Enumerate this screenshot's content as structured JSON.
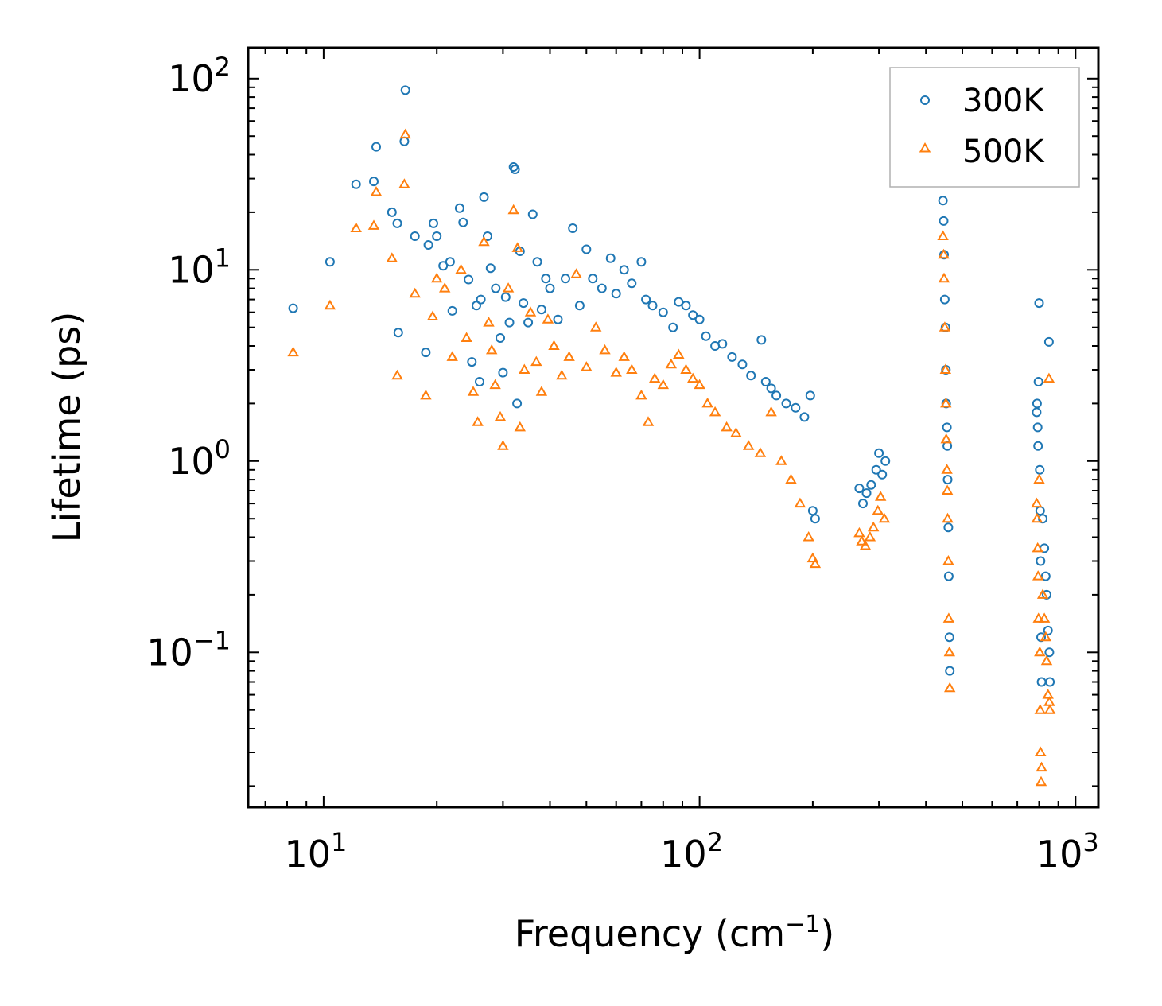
{
  "chart_data": {
    "type": "scatter",
    "title": "",
    "xlabel": "Frequency (cm",
    "xlabel_sup": "−1",
    "xlabel_end": ")",
    "ylabel": "Lifetime (ps)",
    "xscale": "log",
    "yscale": "log",
    "xlim": [
      6.3,
      1150
    ],
    "ylim": [
      0.0155,
      145
    ],
    "x_ticks": [
      {
        "value": 10,
        "base": "10",
        "exp": "1"
      },
      {
        "value": 100,
        "base": "10",
        "exp": "2"
      },
      {
        "value": 1000,
        "base": "10",
        "exp": "3"
      }
    ],
    "y_ticks": [
      {
        "value": 0.1,
        "base": "10",
        "exp": "−1"
      },
      {
        "value": 1,
        "base": "10",
        "exp": "0"
      },
      {
        "value": 10,
        "base": "10",
        "exp": "1"
      },
      {
        "value": 100,
        "base": "10",
        "exp": "2"
      }
    ],
    "legend_position": "top-right",
    "series": [
      {
        "name": "300K",
        "marker": "circle",
        "color": "#1f77b4",
        "points": [
          [
            8.3,
            6.3
          ],
          [
            10.4,
            11
          ],
          [
            12.2,
            28
          ],
          [
            13.6,
            29
          ],
          [
            13.8,
            44
          ],
          [
            15.2,
            20
          ],
          [
            15.7,
            17.5
          ],
          [
            15.8,
            4.7
          ],
          [
            16.5,
            87
          ],
          [
            16.4,
            47
          ],
          [
            17.5,
            15
          ],
          [
            18.7,
            3.7
          ],
          [
            19,
            13.5
          ],
          [
            19.6,
            17.5
          ],
          [
            20,
            15
          ],
          [
            20.8,
            10.5
          ],
          [
            21.7,
            11
          ],
          [
            22,
            6.1
          ],
          [
            23,
            21
          ],
          [
            23.5,
            17.7
          ],
          [
            24.3,
            8.9
          ],
          [
            24.8,
            3.3
          ],
          [
            25.5,
            6.5
          ],
          [
            26,
            2.6
          ],
          [
            26.2,
            7
          ],
          [
            26.7,
            24
          ],
          [
            27.3,
            15
          ],
          [
            27.8,
            10.2
          ],
          [
            28.7,
            8
          ],
          [
            29.5,
            4.4
          ],
          [
            30,
            2.9
          ],
          [
            30.5,
            7.2
          ],
          [
            31.2,
            5.3
          ],
          [
            32,
            34.5
          ],
          [
            32.3,
            33.5
          ],
          [
            32.7,
            2
          ],
          [
            33.3,
            12.5
          ],
          [
            34,
            6.7
          ],
          [
            35,
            5.3
          ],
          [
            36,
            19.5
          ],
          [
            37,
            11
          ],
          [
            38,
            6.2
          ],
          [
            39,
            9
          ],
          [
            40,
            8
          ],
          [
            42,
            5.5
          ],
          [
            44,
            9
          ],
          [
            46,
            16.5
          ],
          [
            48,
            6.5
          ],
          [
            50,
            12.8
          ],
          [
            52,
            9
          ],
          [
            55,
            8
          ],
          [
            58,
            11.5
          ],
          [
            60,
            7.5
          ],
          [
            63,
            10
          ],
          [
            66,
            8.5
          ],
          [
            70,
            11
          ],
          [
            72,
            7
          ],
          [
            75,
            6.5
          ],
          [
            80,
            6
          ],
          [
            85,
            5
          ],
          [
            88,
            6.8
          ],
          [
            92,
            6.5
          ],
          [
            96,
            5.8
          ],
          [
            100,
            5.5
          ],
          [
            104,
            4.5
          ],
          [
            110,
            4
          ],
          [
            115,
            4.1
          ],
          [
            122,
            3.5
          ],
          [
            130,
            3.2
          ],
          [
            137,
            2.8
          ],
          [
            146,
            4.3
          ],
          [
            150,
            2.6
          ],
          [
            155,
            2.4
          ],
          [
            160,
            2.2
          ],
          [
            170,
            2
          ],
          [
            180,
            1.9
          ],
          [
            190,
            1.7
          ],
          [
            197,
            2.2
          ],
          [
            200,
            0.55
          ],
          [
            203,
            0.5
          ],
          [
            266,
            0.72
          ],
          [
            272,
            0.6
          ],
          [
            278,
            0.68
          ],
          [
            286,
            0.75
          ],
          [
            295,
            0.9
          ],
          [
            300,
            1.1
          ],
          [
            306,
            0.85
          ],
          [
            312,
            1.0
          ],
          [
            444,
            23
          ],
          [
            446,
            18
          ],
          [
            447,
            12
          ],
          [
            449,
            7
          ],
          [
            451,
            5
          ],
          [
            452,
            3
          ],
          [
            453,
            2
          ],
          [
            455,
            1.5
          ],
          [
            456,
            1.2
          ],
          [
            457,
            0.8
          ],
          [
            459,
            0.45
          ],
          [
            460,
            0.25
          ],
          [
            462,
            0.12
          ],
          [
            463,
            0.08
          ],
          [
            788,
            1.8
          ],
          [
            790,
            2
          ],
          [
            793,
            1.5
          ],
          [
            795,
            1.2
          ],
          [
            797,
            2.6
          ],
          [
            800,
            6.7
          ],
          [
            803,
            0.9
          ],
          [
            805,
            0.55
          ],
          [
            807,
            0.3
          ],
          [
            810,
            0.12
          ],
          [
            812,
            0.07
          ],
          [
            818,
            0.5
          ],
          [
            826,
            0.35
          ],
          [
            833,
            0.25
          ],
          [
            838,
            0.2
          ],
          [
            845,
            0.13
          ],
          [
            850,
            4.2
          ],
          [
            852,
            0.1
          ],
          [
            855,
            0.07
          ]
        ]
      },
      {
        "name": "500K",
        "marker": "triangle",
        "color": "#ff7f0e",
        "points": [
          [
            8.3,
            3.7
          ],
          [
            10.4,
            6.5
          ],
          [
            12.2,
            16.5
          ],
          [
            13.6,
            17
          ],
          [
            13.8,
            25.5
          ],
          [
            15.2,
            11.5
          ],
          [
            15.7,
            2.8
          ],
          [
            16.4,
            28
          ],
          [
            16.5,
            51
          ],
          [
            17.5,
            7.5
          ],
          [
            18.7,
            2.2
          ],
          [
            19.5,
            5.7
          ],
          [
            20,
            9
          ],
          [
            21,
            8
          ],
          [
            22,
            3.5
          ],
          [
            23.2,
            10
          ],
          [
            24,
            4.4
          ],
          [
            25,
            2.3
          ],
          [
            25.7,
            1.6
          ],
          [
            26.7,
            14
          ],
          [
            27.5,
            5.3
          ],
          [
            28,
            3.8
          ],
          [
            28.6,
            2.5
          ],
          [
            29.5,
            1.7
          ],
          [
            30,
            1.2
          ],
          [
            31,
            8
          ],
          [
            32,
            20.5
          ],
          [
            32.8,
            13
          ],
          [
            33.3,
            1.5
          ],
          [
            34.2,
            3
          ],
          [
            35.5,
            6
          ],
          [
            36.8,
            3.3
          ],
          [
            38,
            2.3
          ],
          [
            39.5,
            5.5
          ],
          [
            41,
            4
          ],
          [
            43,
            2.8
          ],
          [
            45,
            3.5
          ],
          [
            47,
            9.5
          ],
          [
            50,
            3.1
          ],
          [
            53,
            5
          ],
          [
            56,
            3.8
          ],
          [
            60,
            2.9
          ],
          [
            63,
            3.5
          ],
          [
            66,
            3
          ],
          [
            70,
            2.2
          ],
          [
            73,
            1.6
          ],
          [
            76,
            2.7
          ],
          [
            80,
            2.5
          ],
          [
            84,
            3.2
          ],
          [
            88,
            3.6
          ],
          [
            92,
            3
          ],
          [
            96,
            2.7
          ],
          [
            100,
            2.5
          ],
          [
            105,
            2
          ],
          [
            110,
            1.8
          ],
          [
            118,
            1.5
          ],
          [
            125,
            1.4
          ],
          [
            135,
            1.2
          ],
          [
            145,
            1.1
          ],
          [
            155,
            1.8
          ],
          [
            165,
            1
          ],
          [
            175,
            0.8
          ],
          [
            185,
            0.6
          ],
          [
            195,
            0.4
          ],
          [
            200,
            0.31
          ],
          [
            203,
            0.29
          ],
          [
            266,
            0.42
          ],
          [
            270,
            0.38
          ],
          [
            276,
            0.36
          ],
          [
            284,
            0.4
          ],
          [
            290,
            0.45
          ],
          [
            298,
            0.55
          ],
          [
            303,
            0.65
          ],
          [
            310,
            0.5
          ],
          [
            444,
            15
          ],
          [
            446,
            12
          ],
          [
            447,
            9
          ],
          [
            449,
            5
          ],
          [
            451,
            3
          ],
          [
            452,
            2
          ],
          [
            453,
            1.3
          ],
          [
            455,
            0.9
          ],
          [
            456,
            0.7
          ],
          [
            457,
            0.5
          ],
          [
            459,
            0.3
          ],
          [
            460,
            0.15
          ],
          [
            462,
            0.1
          ],
          [
            463,
            0.065
          ],
          [
            788,
            0.6
          ],
          [
            790,
            0.5
          ],
          [
            793,
            0.35
          ],
          [
            795,
            0.25
          ],
          [
            797,
            0.15
          ],
          [
            800,
            0.8
          ],
          [
            803,
            0.1
          ],
          [
            805,
            0.05
          ],
          [
            807,
            0.03
          ],
          [
            810,
            0.021
          ],
          [
            812,
            0.025
          ],
          [
            818,
            0.2
          ],
          [
            826,
            0.15
          ],
          [
            833,
            0.12
          ],
          [
            838,
            0.09
          ],
          [
            845,
            0.06
          ],
          [
            850,
            2.7
          ],
          [
            852,
            0.055
          ],
          [
            855,
            0.05
          ]
        ]
      }
    ]
  }
}
